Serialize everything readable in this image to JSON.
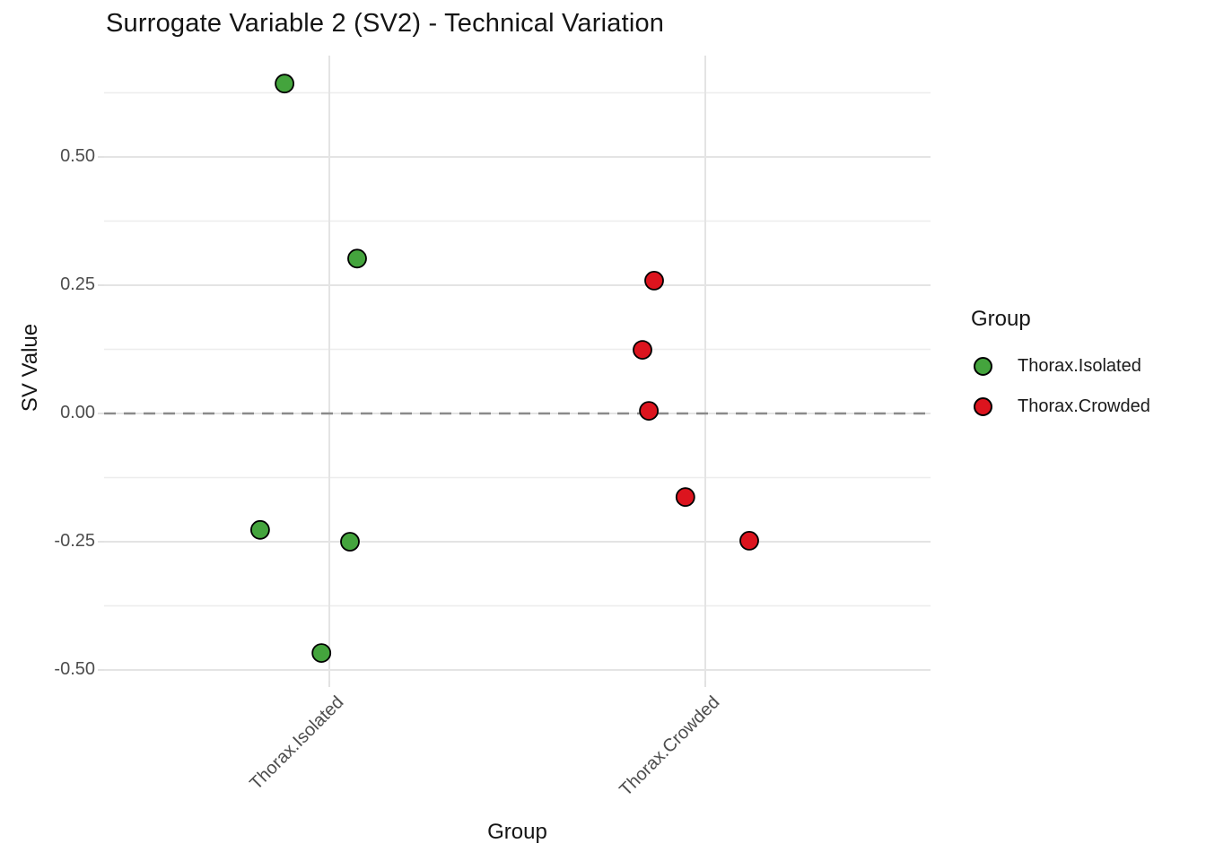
{
  "chart": {
    "title": "Surrogate Variable 2 (SV2) - Technical Variation",
    "xlabel": "Group",
    "ylabel": "SV Value"
  },
  "legend": {
    "title": "Group",
    "items": [
      {
        "label": "Thorax.Isolated",
        "color": "#44A43D"
      },
      {
        "label": "Thorax.Crowded",
        "color": "#DC141E"
      }
    ]
  },
  "chart_data": {
    "type": "scatter",
    "title": "Surrogate Variable 2 (SV2) - Technical Variation",
    "xlabel": "Group",
    "ylabel": "SV Value",
    "categories": [
      "Thorax.Isolated",
      "Thorax.Crowded"
    ],
    "y_ticks": [
      "0.50",
      "0.25",
      "0.00",
      "-0.25",
      "-0.50"
    ],
    "y_tick_values": [
      0.5,
      0.25,
      0.0,
      -0.25,
      -0.5
    ],
    "y_minor_values": [
      0.625,
      0.375,
      0.125,
      -0.125,
      -0.375
    ],
    "ylim": [
      -0.52,
      0.7
    ],
    "grid": true,
    "legend_position": "right",
    "point_style": {
      "radius": 10,
      "stroke": "#000000",
      "stroke_width": 1.8
    },
    "grid_colors": {
      "major": "#E4E4E4",
      "minor": "#EDEDED"
    },
    "reference_line": {
      "y": 0,
      "style": "dashed",
      "color": "#8A8A8A"
    },
    "series": [
      {
        "name": "Thorax.Isolated",
        "color": "#44A43D",
        "points": [
          {
            "x": "Thorax.Isolated",
            "jitter": -0.119,
            "y": 0.643
          },
          {
            "x": "Thorax.Isolated",
            "jitter": 0.074,
            "y": 0.302
          },
          {
            "x": "Thorax.Isolated",
            "jitter": -0.184,
            "y": -0.227
          },
          {
            "x": "Thorax.Isolated",
            "jitter": 0.055,
            "y": -0.25
          },
          {
            "x": "Thorax.Isolated",
            "jitter": -0.021,
            "y": -0.467
          }
        ]
      },
      {
        "name": "Thorax.Crowded",
        "color": "#DC141E",
        "points": [
          {
            "x": "Thorax.Crowded",
            "jitter": -0.136,
            "y": 0.259
          },
          {
            "x": "Thorax.Crowded",
            "jitter": -0.167,
            "y": 0.124
          },
          {
            "x": "Thorax.Crowded",
            "jitter": -0.15,
            "y": 0.005
          },
          {
            "x": "Thorax.Crowded",
            "jitter": -0.053,
            "y": -0.163
          },
          {
            "x": "Thorax.Crowded",
            "jitter": 0.117,
            "y": -0.248
          }
        ]
      }
    ]
  }
}
